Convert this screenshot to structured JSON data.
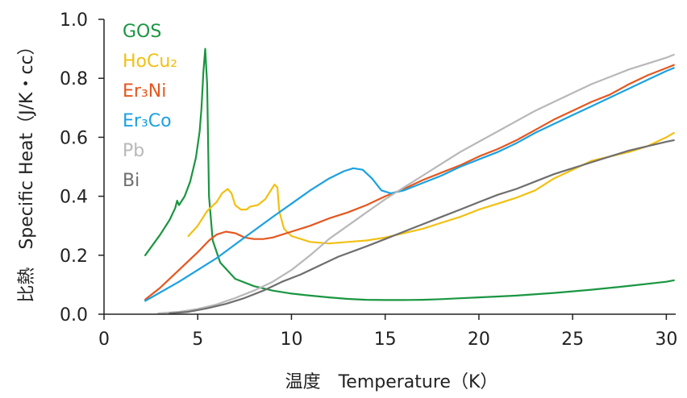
{
  "chart_data": {
    "type": "line",
    "title": "",
    "xlabel": "温度　Temperature（K）",
    "ylabel": "比熱　Specific Heat（J/K・cc）",
    "xlim": [
      0,
      30.5
    ],
    "ylim": [
      0,
      1.0
    ],
    "xticks": [
      0,
      5,
      10,
      15,
      20,
      25,
      30
    ],
    "yticks": [
      0.0,
      0.2,
      0.4,
      0.6,
      0.8,
      1.0
    ],
    "xtick_labels": [
      "0",
      "5",
      "10",
      "15",
      "20",
      "25",
      "30"
    ],
    "ytick_labels": [
      "0.0",
      "0.2",
      "0.4",
      "0.6",
      "0.8",
      "1.0"
    ],
    "grid": false,
    "legend_position": "top-left",
    "series": [
      {
        "name": "GOS",
        "color": "#1a9641",
        "points": [
          [
            2.2,
            0.2
          ],
          [
            3.0,
            0.27
          ],
          [
            3.5,
            0.32
          ],
          [
            3.8,
            0.36
          ],
          [
            3.9,
            0.385
          ],
          [
            4.0,
            0.37
          ],
          [
            4.3,
            0.4
          ],
          [
            4.6,
            0.45
          ],
          [
            4.9,
            0.53
          ],
          [
            5.1,
            0.62
          ],
          [
            5.2,
            0.7
          ],
          [
            5.3,
            0.82
          ],
          [
            5.4,
            0.9
          ],
          [
            5.5,
            0.78
          ],
          [
            5.6,
            0.4
          ],
          [
            5.8,
            0.25
          ],
          [
            6.2,
            0.175
          ],
          [
            7.0,
            0.12
          ],
          [
            8.0,
            0.095
          ],
          [
            9.0,
            0.08
          ],
          [
            10.0,
            0.07
          ],
          [
            11.0,
            0.063
          ],
          [
            12.0,
            0.057
          ],
          [
            13.0,
            0.052
          ],
          [
            14.0,
            0.049
          ],
          [
            15.0,
            0.048
          ],
          [
            16.0,
            0.048
          ],
          [
            17.0,
            0.049
          ],
          [
            18.0,
            0.051
          ],
          [
            19.0,
            0.054
          ],
          [
            20.0,
            0.057
          ],
          [
            22.0,
            0.063
          ],
          [
            24.0,
            0.072
          ],
          [
            26.0,
            0.083
          ],
          [
            28.0,
            0.096
          ],
          [
            30.0,
            0.11
          ],
          [
            30.4,
            0.115
          ]
        ]
      },
      {
        "name": "HoCu₂",
        "color": "#f2c012",
        "points": [
          [
            4.5,
            0.265
          ],
          [
            5.0,
            0.3
          ],
          [
            5.5,
            0.35
          ],
          [
            6.0,
            0.38
          ],
          [
            6.3,
            0.41
          ],
          [
            6.6,
            0.425
          ],
          [
            6.8,
            0.41
          ],
          [
            7.0,
            0.37
          ],
          [
            7.3,
            0.355
          ],
          [
            7.6,
            0.355
          ],
          [
            7.8,
            0.365
          ],
          [
            8.2,
            0.37
          ],
          [
            8.6,
            0.39
          ],
          [
            8.9,
            0.42
          ],
          [
            9.1,
            0.44
          ],
          [
            9.25,
            0.43
          ],
          [
            9.35,
            0.35
          ],
          [
            9.6,
            0.29
          ],
          [
            10.0,
            0.265
          ],
          [
            11.0,
            0.245
          ],
          [
            12.0,
            0.24
          ],
          [
            13.0,
            0.245
          ],
          [
            14.0,
            0.25
          ],
          [
            15.0,
            0.26
          ],
          [
            16.0,
            0.275
          ],
          [
            17.0,
            0.29
          ],
          [
            18.0,
            0.31
          ],
          [
            19.0,
            0.33
          ],
          [
            20.0,
            0.355
          ],
          [
            21.0,
            0.375
          ],
          [
            22.0,
            0.395
          ],
          [
            23.0,
            0.42
          ],
          [
            24.0,
            0.46
          ],
          [
            25.0,
            0.49
          ],
          [
            26.0,
            0.52
          ],
          [
            27.0,
            0.535
          ],
          [
            28.0,
            0.55
          ],
          [
            29.0,
            0.57
          ],
          [
            30.0,
            0.6
          ],
          [
            30.4,
            0.615
          ]
        ]
      },
      {
        "name": "Er₃Ni",
        "color": "#e5571f",
        "points": [
          [
            2.2,
            0.05
          ],
          [
            3.0,
            0.09
          ],
          [
            4.0,
            0.15
          ],
          [
            5.0,
            0.21
          ],
          [
            5.6,
            0.25
          ],
          [
            6.0,
            0.27
          ],
          [
            6.5,
            0.28
          ],
          [
            7.0,
            0.275
          ],
          [
            7.5,
            0.26
          ],
          [
            8.0,
            0.255
          ],
          [
            8.5,
            0.255
          ],
          [
            9.0,
            0.26
          ],
          [
            10.0,
            0.28
          ],
          [
            11.0,
            0.3
          ],
          [
            12.0,
            0.325
          ],
          [
            13.0,
            0.345
          ],
          [
            14.0,
            0.37
          ],
          [
            15.0,
            0.4
          ],
          [
            16.0,
            0.425
          ],
          [
            17.0,
            0.455
          ],
          [
            18.0,
            0.48
          ],
          [
            19.0,
            0.505
          ],
          [
            20.0,
            0.535
          ],
          [
            21.0,
            0.56
          ],
          [
            22.0,
            0.59
          ],
          [
            23.0,
            0.625
          ],
          [
            24.0,
            0.66
          ],
          [
            25.0,
            0.69
          ],
          [
            26.0,
            0.72
          ],
          [
            27.0,
            0.745
          ],
          [
            28.0,
            0.78
          ],
          [
            29.0,
            0.81
          ],
          [
            30.0,
            0.835
          ],
          [
            30.4,
            0.845
          ]
        ]
      },
      {
        "name": "Er₃Co",
        "color": "#1ba1e2",
        "points": [
          [
            2.2,
            0.045
          ],
          [
            4.0,
            0.11
          ],
          [
            6.0,
            0.19
          ],
          [
            7.5,
            0.26
          ],
          [
            9.0,
            0.33
          ],
          [
            10.0,
            0.375
          ],
          [
            11.0,
            0.42
          ],
          [
            12.0,
            0.46
          ],
          [
            12.8,
            0.485
          ],
          [
            13.3,
            0.495
          ],
          [
            13.8,
            0.49
          ],
          [
            14.3,
            0.46
          ],
          [
            14.8,
            0.42
          ],
          [
            15.3,
            0.41
          ],
          [
            16.0,
            0.42
          ],
          [
            17.0,
            0.445
          ],
          [
            18.0,
            0.47
          ],
          [
            19.0,
            0.5
          ],
          [
            20.0,
            0.525
          ],
          [
            21.0,
            0.55
          ],
          [
            22.0,
            0.58
          ],
          [
            23.0,
            0.615
          ],
          [
            24.0,
            0.645
          ],
          [
            25.0,
            0.675
          ],
          [
            26.0,
            0.705
          ],
          [
            27.0,
            0.735
          ],
          [
            28.0,
            0.765
          ],
          [
            29.0,
            0.795
          ],
          [
            30.0,
            0.825
          ],
          [
            30.4,
            0.835
          ]
        ]
      },
      {
        "name": "Pb",
        "color": "#b8b8b8",
        "points": [
          [
            2.9,
            0.003
          ],
          [
            4.0,
            0.008
          ],
          [
            5.0,
            0.018
          ],
          [
            6.0,
            0.033
          ],
          [
            7.0,
            0.055
          ],
          [
            8.0,
            0.08
          ],
          [
            9.0,
            0.11
          ],
          [
            10.0,
            0.15
          ],
          [
            11.0,
            0.2
          ],
          [
            12.0,
            0.255
          ],
          [
            13.0,
            0.3
          ],
          [
            14.0,
            0.345
          ],
          [
            15.0,
            0.39
          ],
          [
            16.0,
            0.43
          ],
          [
            17.0,
            0.47
          ],
          [
            18.0,
            0.51
          ],
          [
            19.0,
            0.55
          ],
          [
            20.0,
            0.585
          ],
          [
            21.0,
            0.62
          ],
          [
            22.0,
            0.655
          ],
          [
            23.0,
            0.69
          ],
          [
            24.0,
            0.72
          ],
          [
            25.0,
            0.75
          ],
          [
            26.0,
            0.78
          ],
          [
            27.0,
            0.805
          ],
          [
            28.0,
            0.83
          ],
          [
            29.0,
            0.85
          ],
          [
            30.0,
            0.87
          ],
          [
            30.4,
            0.88
          ]
        ]
      },
      {
        "name": "Bi",
        "color": "#6e6e6e",
        "points": [
          [
            3.5,
            0.003
          ],
          [
            4.5,
            0.008
          ],
          [
            5.5,
            0.02
          ],
          [
            6.5,
            0.035
          ],
          [
            7.5,
            0.055
          ],
          [
            8.5,
            0.08
          ],
          [
            9.5,
            0.11
          ],
          [
            10.5,
            0.135
          ],
          [
            11.5,
            0.165
          ],
          [
            12.5,
            0.195
          ],
          [
            14.0,
            0.23
          ],
          [
            15.0,
            0.255
          ],
          [
            16.0,
            0.28
          ],
          [
            17.0,
            0.305
          ],
          [
            18.0,
            0.33
          ],
          [
            19.0,
            0.355
          ],
          [
            20.0,
            0.38
          ],
          [
            21.0,
            0.405
          ],
          [
            22.0,
            0.425
          ],
          [
            23.0,
            0.45
          ],
          [
            24.0,
            0.475
          ],
          [
            25.0,
            0.495
          ],
          [
            26.0,
            0.515
          ],
          [
            27.0,
            0.535
          ],
          [
            28.0,
            0.555
          ],
          [
            29.0,
            0.57
          ],
          [
            30.0,
            0.585
          ],
          [
            30.4,
            0.59
          ]
        ]
      }
    ]
  }
}
